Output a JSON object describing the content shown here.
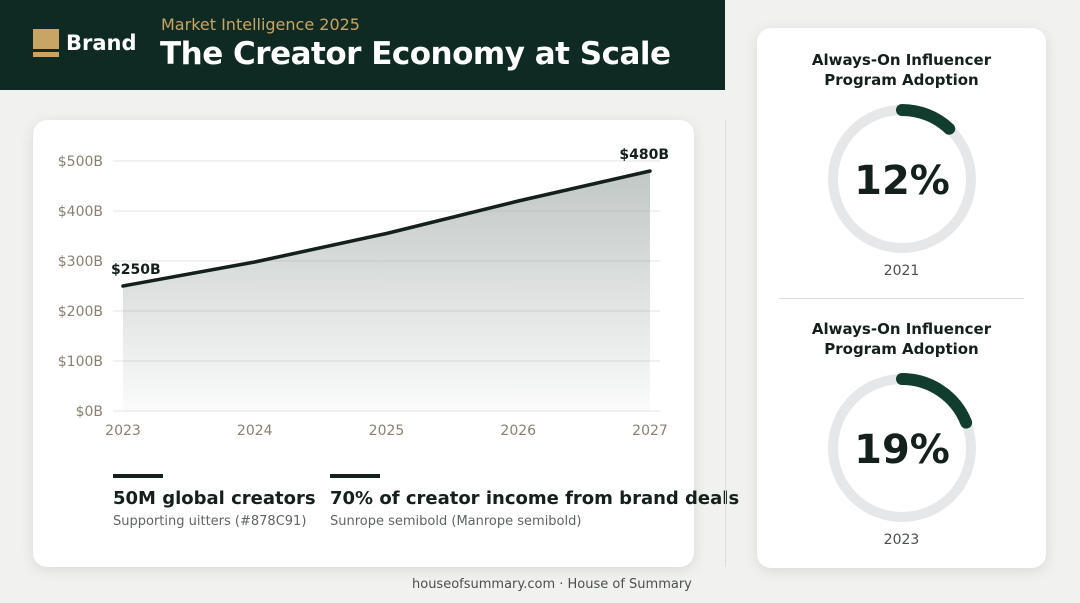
{
  "header": {
    "brand": "Brand",
    "kicker": "Market Intelligence 2025",
    "title": "The Creator Economy at Scale"
  },
  "chart_data": {
    "type": "area",
    "x": [
      "2023",
      "2024",
      "2025",
      "2026",
      "2027"
    ],
    "series": [
      {
        "values": [
          250,
          298,
          355,
          420,
          480
        ]
      }
    ],
    "y_ticks": [
      "$0B",
      "$100B",
      "$200B",
      "$300B",
      "$400B",
      "$500B"
    ],
    "ylim": [
      0,
      500
    ],
    "grid": true,
    "annotations": [
      {
        "x": "2023",
        "label": "$250B"
      },
      {
        "x": "2027",
        "label": "$480B"
      }
    ],
    "colors": {
      "line": "#14201b",
      "fill": "#8e9a95",
      "grid": "#e2e4e1",
      "tick": "#8a8070"
    }
  },
  "stats": [
    {
      "value": "50M global creators",
      "sub": "Supporting uitters (#878C91)"
    },
    {
      "value": "70% of creator income from brand deals",
      "sub": "Sunrope semibold (Manrope semibold)"
    }
  ],
  "gauges": [
    {
      "title_line1": "Always-On Influencer",
      "title_line2": "Program Adoption",
      "value": 12,
      "label": "12%",
      "year": "2021"
    },
    {
      "title_line1": "Always-On Influencer",
      "title_line2": "Program Adoption",
      "value": 19,
      "label": "19%",
      "year": "2023"
    }
  ],
  "footer": {
    "text": "houseofsummary.com · House of Summary"
  },
  "colors": {
    "header_bg": "#0f2a22",
    "accent_gold": "#c9a565",
    "gauge_track": "#e6e7e8",
    "gauge_fill": "#123c2d"
  }
}
